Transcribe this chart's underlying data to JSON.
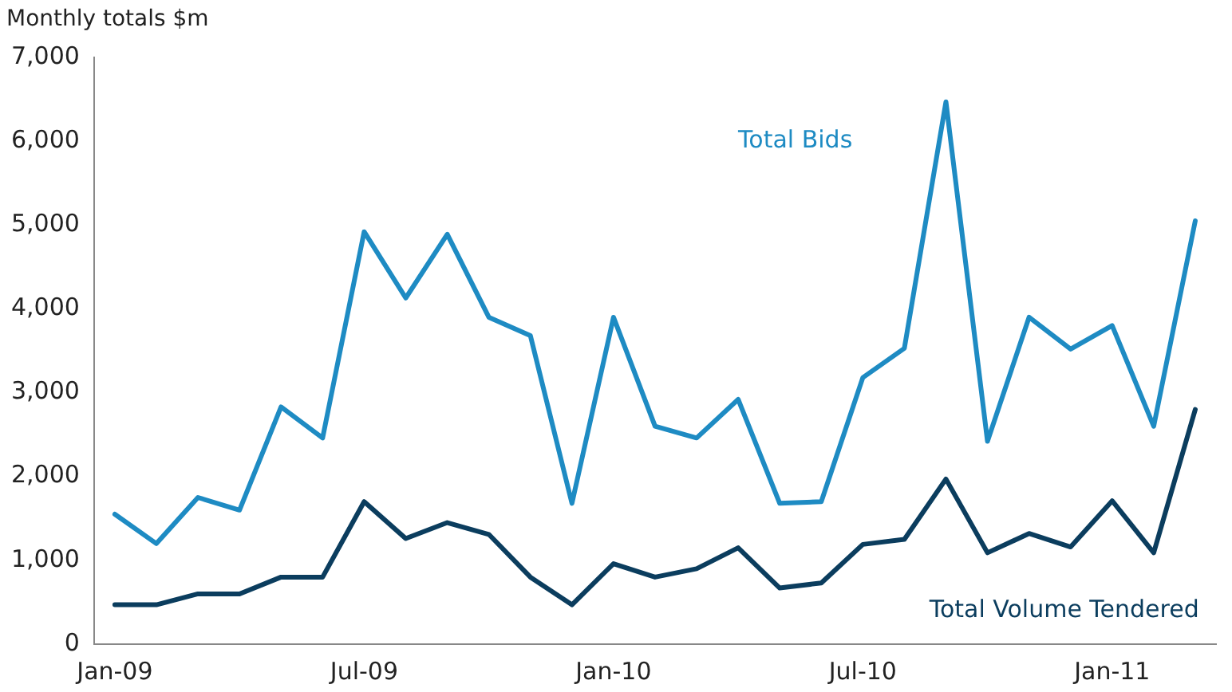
{
  "chart_data": {
    "type": "line",
    "ylabel": "Monthly totals $m",
    "categories": [
      "Jan-09",
      null,
      null,
      null,
      null,
      null,
      "Jul-09",
      null,
      null,
      null,
      null,
      null,
      "Jan-10",
      null,
      null,
      null,
      null,
      null,
      "Jul-10",
      null,
      null,
      null,
      null,
      null,
      "Jan-11",
      null,
      null
    ],
    "series": [
      {
        "name": "Total Bids",
        "color": "#1e8bc3",
        "values": [
          1550,
          1200,
          1750,
          1600,
          2830,
          2460,
          4920,
          4130,
          4890,
          3900,
          3680,
          1680,
          3900,
          2600,
          2460,
          2920,
          1680,
          1700,
          3180,
          3530,
          6470,
          2420,
          3900,
          3520,
          3800,
          2600,
          5050
        ]
      },
      {
        "name": "Total Volume Tendered",
        "color": "#0b3d5e",
        "values": [
          470,
          470,
          600,
          600,
          800,
          800,
          1700,
          1260,
          1450,
          1310,
          800,
          470,
          960,
          800,
          900,
          1150,
          670,
          730,
          1190,
          1250,
          1970,
          1090,
          1320,
          1160,
          1710,
          1090,
          2800
        ]
      }
    ],
    "ylim": [
      0,
      7000
    ],
    "yticks": [
      0,
      {
        "value": 1000,
        "label": "1,000"
      },
      {
        "value": 2000,
        "label": "2,000"
      },
      {
        "value": 3000,
        "label": "3,000"
      },
      {
        "value": 4000,
        "label": "4,000"
      },
      {
        "value": 5000,
        "label": "5,000"
      },
      {
        "value": 6000,
        "label": "6,000"
      },
      {
        "value": 7000,
        "label": "7,000"
      }
    ],
    "grid": false,
    "legend": false,
    "marker": "none",
    "line_style": "solid"
  }
}
